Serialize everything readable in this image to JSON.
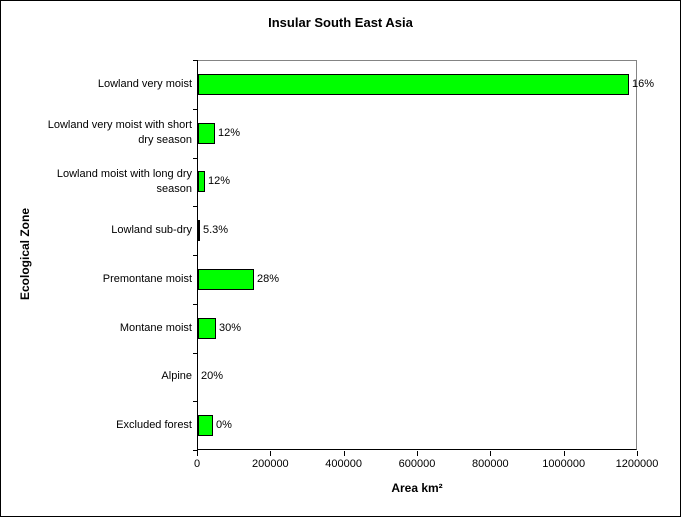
{
  "chart_data": {
    "type": "bar",
    "orientation": "horizontal",
    "title": "Insular South East Asia",
    "xlabel": "Area km²",
    "ylabel": "Ecological Zone",
    "xlim": [
      0,
      1200000
    ],
    "x_tick_labels": [
      "0",
      "200000",
      "400000",
      "600000",
      "800000",
      "1000000",
      "1200000"
    ],
    "categories": [
      "Lowland very moist",
      "Lowland very moist with short dry season",
      "Lowland moist with long dry season",
      "Lowland sub-dry",
      "Premontane moist",
      "Montane moist",
      "Alpine",
      "Excluded forest"
    ],
    "values": [
      1175000,
      45000,
      20000,
      6000,
      152000,
      50000,
      0,
      41000
    ],
    "bar_labels": [
      "16%",
      "12%",
      "12%",
      "5.3%",
      "28%",
      "30%",
      "20%",
      "0%"
    ],
    "grid": false,
    "legend": false,
    "colors": {
      "bar_fill": "#00FF00",
      "bar_border": "#000000",
      "plot_border": "#848484",
      "axis": "#000000",
      "background": "#FFFFFF"
    }
  }
}
